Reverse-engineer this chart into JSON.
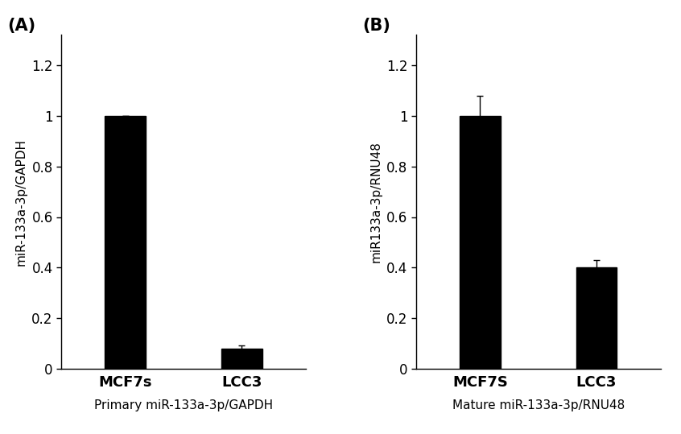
{
  "panel_A": {
    "label": "(A)",
    "categories": [
      "MCF7s",
      "LCC3"
    ],
    "values": [
      1.0,
      0.08
    ],
    "errors": [
      0.0,
      0.012
    ],
    "ylabel": "miR-133a-3p/GAPDH",
    "xlabel": "Primary miR-133a-3p/GAPDH",
    "ylim": [
      0,
      1.32
    ],
    "yticks": [
      0,
      0.2,
      0.4,
      0.6,
      0.8,
      1.0,
      1.2
    ],
    "ytick_labels": [
      "0",
      "0.2",
      "0.4",
      "0.6",
      "0.8",
      "1",
      "1.2"
    ],
    "bar_color": "#000000",
    "bar_width": 0.35
  },
  "panel_B": {
    "label": "(B)",
    "categories": [
      "MCF7S",
      "LCC3"
    ],
    "values": [
      1.0,
      0.4
    ],
    "errors": [
      0.08,
      0.03
    ],
    "ylabel": "miR133a-3p/RNU48",
    "xlabel": "Mature miR-133a-3p/RNU48",
    "ylim": [
      0,
      1.32
    ],
    "yticks": [
      0,
      0.2,
      0.4,
      0.6,
      0.8,
      1.0,
      1.2
    ],
    "ytick_labels": [
      "0",
      "0.2",
      "0.4",
      "0.6",
      "0.8",
      "1",
      "1.2"
    ],
    "bar_color": "#000000",
    "bar_width": 0.35
  },
  "fig_width": 8.46,
  "fig_height": 5.39,
  "dpi": 100,
  "background_color": "#ffffff",
  "cat_fontsize": 13,
  "tick_fontsize": 12,
  "xlabel_fontsize": 11,
  "ylabel_fontsize": 11,
  "panel_label_fontsize": 15
}
